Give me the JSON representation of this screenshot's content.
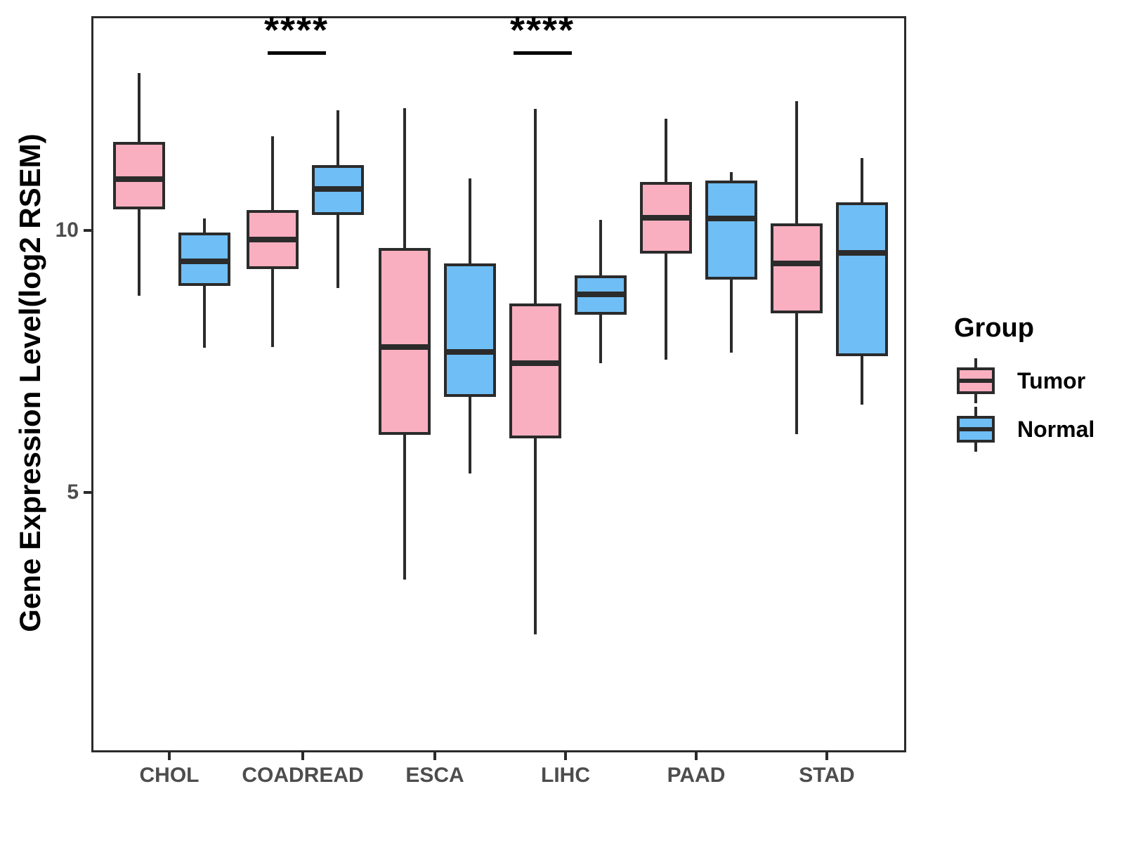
{
  "chart_data": {
    "type": "boxplot",
    "title": "",
    "ylabel": "Gene Expression Level(log2 RSEM)",
    "xlabel": "",
    "y_ticks": [
      10,
      5
    ],
    "ylim": [
      0,
      14.1
    ],
    "grid": "off",
    "legend_position": "right",
    "categories": [
      "CHOL",
      "COADREAD",
      "ESCA",
      "LIHC",
      "PAAD",
      "STAD"
    ],
    "legend": {
      "title": "Group",
      "items": [
        {
          "label": "Tumor",
          "color": "#F9AFC0"
        },
        {
          "label": "Normal",
          "color": "#6FBEF5"
        }
      ]
    },
    "series": [
      {
        "name": "Tumor",
        "fill": "#F9AFC0",
        "boxes": [
          {
            "category": "CHOL",
            "whisker_low": 8.78,
            "q1": 10.43,
            "median": 11.01,
            "q3": 11.72,
            "whisker_high": 13.04
          },
          {
            "category": "COADREAD",
            "whisker_low": 7.81,
            "q1": 9.3,
            "median": 9.86,
            "q3": 10.42,
            "whisker_high": 11.83
          },
          {
            "category": "ESCA",
            "whisker_low": 3.37,
            "q1": 6.13,
            "median": 7.81,
            "q3": 9.7,
            "whisker_high": 12.37
          },
          {
            "category": "LIHC",
            "whisker_low": 2.33,
            "q1": 6.07,
            "median": 7.5,
            "q3": 8.64,
            "whisker_high": 12.35
          },
          {
            "category": "PAAD",
            "whisker_low": 7.57,
            "q1": 9.59,
            "median": 10.28,
            "q3": 10.96,
            "whisker_high": 12.16
          },
          {
            "category": "STAD",
            "whisker_low": 6.15,
            "q1": 8.45,
            "median": 9.4,
            "q3": 10.17,
            "whisker_high": 12.5
          }
        ]
      },
      {
        "name": "Normal",
        "fill": "#6FBEF5",
        "boxes": [
          {
            "category": "CHOL",
            "whisker_low": 7.79,
            "q1": 8.98,
            "median": 9.45,
            "q3": 9.99,
            "whisker_high": 10.26
          },
          {
            "category": "COADREAD",
            "whisker_low": 8.93,
            "q1": 10.33,
            "median": 10.83,
            "q3": 11.28,
            "whisker_high": 12.32
          },
          {
            "category": "ESCA",
            "whisker_low": 5.39,
            "q1": 6.86,
            "median": 7.71,
            "q3": 9.41,
            "whisker_high": 11.02
          },
          {
            "category": "LIHC",
            "whisker_low": 7.5,
            "q1": 8.42,
            "median": 8.81,
            "q3": 9.18,
            "whisker_high": 10.24
          },
          {
            "category": "PAAD",
            "whisker_low": 7.7,
            "q1": 9.09,
            "median": 10.26,
            "q3": 10.98,
            "whisker_high": 11.14
          },
          {
            "category": "STAD",
            "whisker_low": 6.71,
            "q1": 7.63,
            "median": 9.61,
            "q3": 10.57,
            "whisker_high": 11.42
          }
        ]
      }
    ],
    "annotations": [
      {
        "category": "COADREAD",
        "label": "****"
      },
      {
        "category": "LIHC",
        "label": "****"
      }
    ],
    "colors": {
      "stroke": "#2B2B2B",
      "axis_text": "#4D4D4D",
      "title_text": "#000000",
      "tumor": "#F9AFC0",
      "normal": "#6FBEF5"
    }
  }
}
